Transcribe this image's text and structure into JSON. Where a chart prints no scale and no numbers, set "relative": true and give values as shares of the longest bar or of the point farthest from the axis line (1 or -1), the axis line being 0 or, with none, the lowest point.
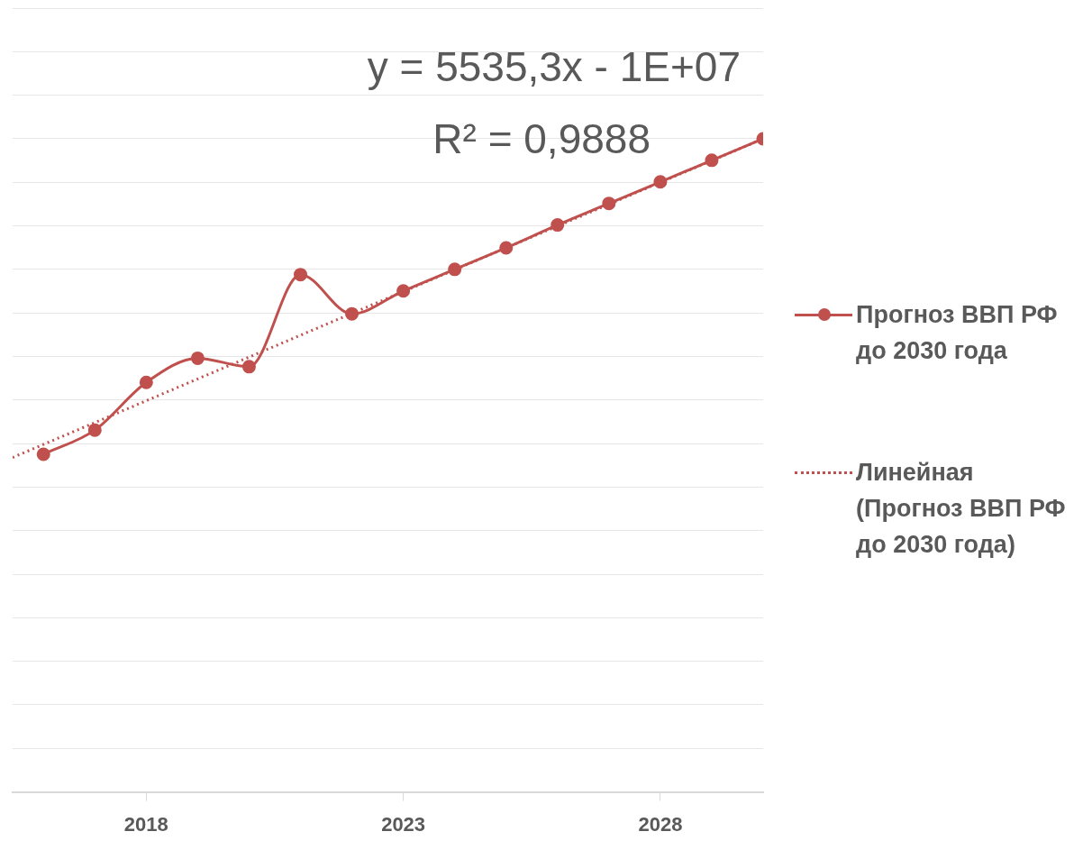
{
  "chart_data": {
    "type": "line",
    "relative": true,
    "x": [
      2016,
      2017,
      2018,
      2019,
      2020,
      2021,
      2022,
      2023,
      2024,
      2025,
      2026,
      2027,
      2028,
      2029,
      2030
    ],
    "xlim": [
      2015.4,
      2030
    ],
    "xticks": [
      2018,
      2023,
      2028
    ],
    "series": [
      {
        "name": "Прогноз ВВП РФ до 2030 года",
        "color": "#c0504d",
        "marker": "circle",
        "line_style": "solid",
        "values": [
          0.517,
          0.554,
          0.627,
          0.664,
          0.651,
          0.792,
          0.732,
          0.767,
          0.8,
          0.833,
          0.868,
          0.901,
          0.934,
          0.967,
          1
        ]
      },
      {
        "name": "Линейная (Прогноз ВВП РФ до 2030 года)",
        "color": "#c0504d",
        "marker": "none",
        "line_style": "dotted",
        "x": [
          2015.4,
          2030
        ],
        "values": [
          0.512,
          1
        ]
      }
    ],
    "annotations": [
      "y = 5535,3x - 1E+07",
      "R² = 0,9888"
    ],
    "grid": "y",
    "legend": "right"
  }
}
